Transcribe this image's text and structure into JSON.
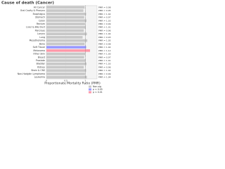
{
  "chart_data": {
    "type": "barh",
    "title": "Cause of death (Cancer)",
    "xlabel": "Proportionate Mortality Ratio (PMR)",
    "categories": [
      "All Cancer",
      "Oral Cavity & Pharynx",
      "Esophagus",
      "Stomach",
      "Colon",
      "Rectum",
      "Liver & Bile Duct",
      "Pancreas",
      "Larynx",
      "Lung",
      "Mesothelioma",
      "Bone",
      "Soft Tissue",
      "Melanoma",
      "Other Skin",
      "Breast",
      "Prostate",
      "Bladder",
      "Kidney",
      "Brain & CNS",
      "Non-Hodgkin Lymphoma",
      "Leukemia"
    ],
    "values": [
      0.98,
      0.95,
      1.02,
      0.97,
      1.03,
      0.99,
      1.01,
      0.96,
      1.04,
      0.93,
      1.05,
      0.98,
      1.02,
      1.12,
      1.0,
      0.97,
      1.01,
      1.03,
      0.96,
      1.02,
      0.99,
      1.04
    ],
    "value_labels": [
      "PMR = 0.98",
      "PMR = 0.95",
      "PMR = 1.02",
      "PMR = 0.97",
      "PMR = 1.03",
      "PMR = 0.99",
      "PMR = 1.01",
      "PMR = 0.96",
      "PMR = 1.04",
      "PMR = 0.93",
      "PMR = 1.05",
      "PMR = 0.98",
      "PMR = 1.02",
      "PMR = 1.12",
      "PMR = 1.00",
      "PMR = 0.97",
      "PMR = 1.01",
      "PMR = 1.03",
      "PMR = 0.96",
      "PMR = 1.02",
      "PMR = 0.99",
      "PMR = 1.04"
    ],
    "bar_colors": [
      "#c8c8c8",
      "#c8c8c8",
      "#c8c8c8",
      "#c8c8c8",
      "#c8c8c8",
      "#c8c8c8",
      "#c8c8c8",
      "#c8c8c8",
      "#c8c8c8",
      "#c8c8c8",
      "#c8c8c8",
      "#c8c8c8",
      "#9999ff",
      "#ff99aa",
      "#c8c8c8",
      "#c8c8c8",
      "#c8c8c8",
      "#c8c8c8",
      "#c8c8c8",
      "#c8c8c8",
      "#c8c8c8",
      "#c8c8c8"
    ],
    "legend": [
      {
        "label": "Non-sig",
        "color": "#c8c8c8"
      },
      {
        "label": "p < 0.05",
        "color": "#9999ff"
      },
      {
        "label": "p < 0.01",
        "color": "#ff99aa"
      }
    ],
    "xlim": [
      0,
      1.3
    ],
    "xticks": [
      0,
      0.5,
      1
    ],
    "reference_line": 1
  }
}
